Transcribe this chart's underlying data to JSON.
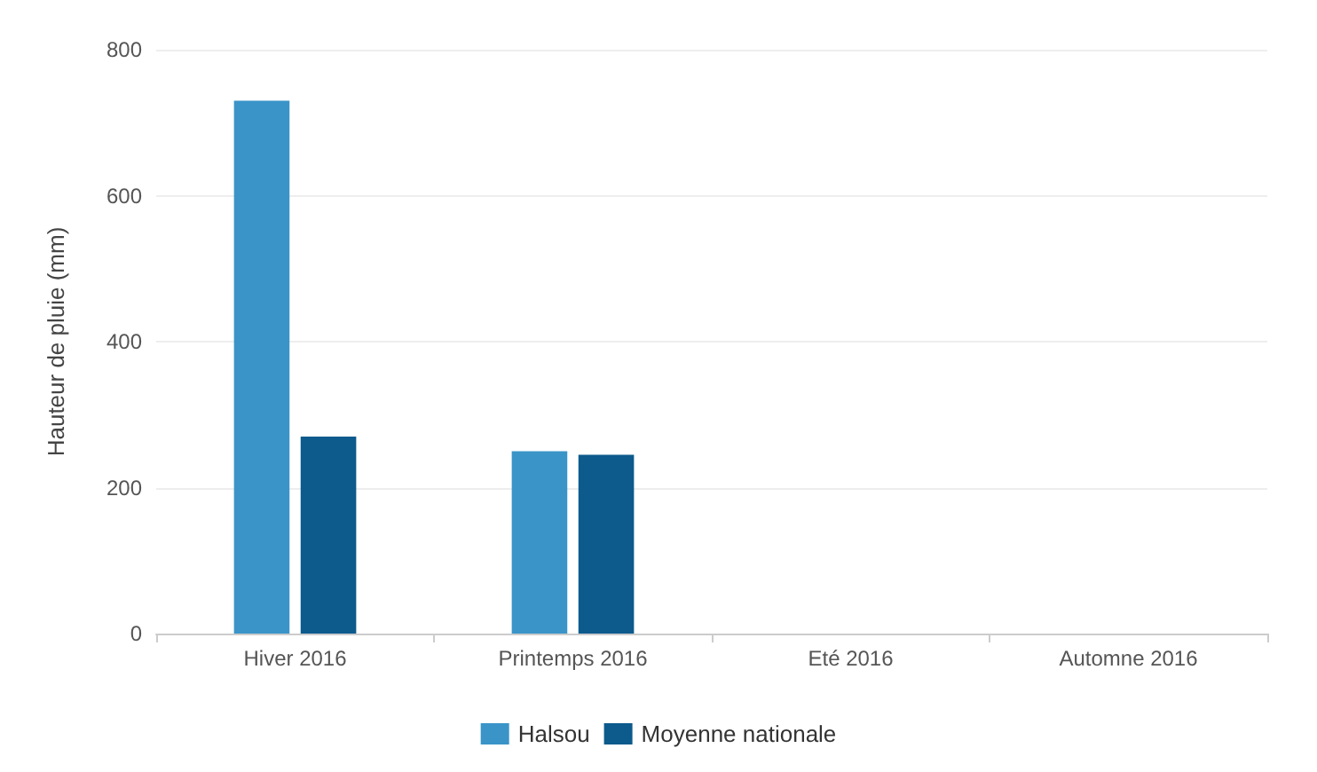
{
  "chart_data": {
    "type": "bar",
    "ylabel": "Hauteur de pluie (mm)",
    "categories": [
      "Hiver 2016",
      "Printemps 2016",
      "Eté 2016",
      "Automne 2016"
    ],
    "series": [
      {
        "name": "Halsou",
        "color": "#3a94c8",
        "values": [
          730,
          250,
          null,
          null
        ]
      },
      {
        "name": "Moyenne nationale",
        "color": "#0d5a8c",
        "values": [
          270,
          245,
          null,
          null
        ]
      }
    ],
    "ylim": [
      0,
      800
    ],
    "yticks": [
      0,
      200,
      400,
      600,
      800
    ],
    "grid": "y",
    "legend": "bottom"
  }
}
